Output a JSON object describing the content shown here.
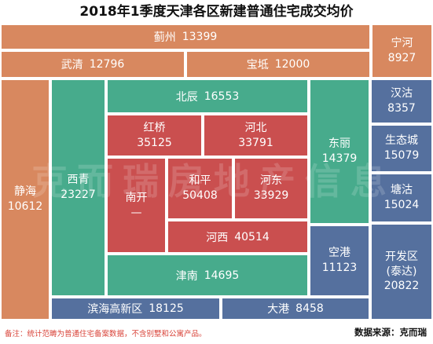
{
  "title": "2018年1季度天津各区新建普通住宅成交均价",
  "watermark": "克而瑞房地产信息",
  "footnote": "备注：统计范畴为普通住宅备案数据，不含别墅和公寓产品。",
  "source": "数据来源：克而瑞",
  "colors": {
    "outer_ring": "#d8885f",
    "ring_2": "#47ab8c",
    "core": "#ca4f4f",
    "binhai": "#55709e"
  },
  "chart_data": {
    "type": "table",
    "title": "2018年1季度天津各区新建普通住宅成交均价",
    "regions": [
      {
        "name": "蓟州",
        "value": "13399",
        "group": "outer_ring"
      },
      {
        "name": "宁河",
        "value": "8927",
        "group": "outer_ring"
      },
      {
        "name": "武清",
        "value": "12796",
        "group": "outer_ring"
      },
      {
        "name": "宝坻",
        "value": "12000",
        "group": "outer_ring"
      },
      {
        "name": "静海",
        "value": "10612",
        "group": "outer_ring"
      },
      {
        "name": "北辰",
        "value": "16553",
        "group": "ring_2"
      },
      {
        "name": "西青",
        "value": "23227",
        "group": "ring_2"
      },
      {
        "name": "东丽",
        "value": "14379",
        "group": "ring_2"
      },
      {
        "name": "津南",
        "value": "14695",
        "group": "ring_2"
      },
      {
        "name": "红桥",
        "value": "35125",
        "group": "core"
      },
      {
        "name": "河北",
        "value": "33791",
        "group": "core"
      },
      {
        "name": "南开",
        "value": "—",
        "group": "core"
      },
      {
        "name": "和平",
        "value": "50408",
        "group": "core"
      },
      {
        "name": "河东",
        "value": "33929",
        "group": "core"
      },
      {
        "name": "河西",
        "value": "40514",
        "group": "core"
      },
      {
        "name": "汉沽",
        "value": "8357",
        "group": "binhai"
      },
      {
        "name": "生态城",
        "value": "15079",
        "group": "binhai"
      },
      {
        "name": "塘沽",
        "value": "15024",
        "group": "binhai"
      },
      {
        "name": "空港",
        "value": "11123",
        "group": "binhai"
      },
      {
        "name": "开发区\n(泰达)",
        "value": "20822",
        "group": "binhai"
      },
      {
        "name": "滨海高新区",
        "value": "18125",
        "group": "binhai"
      },
      {
        "name": "大港",
        "value": "8458",
        "group": "binhai"
      }
    ]
  }
}
